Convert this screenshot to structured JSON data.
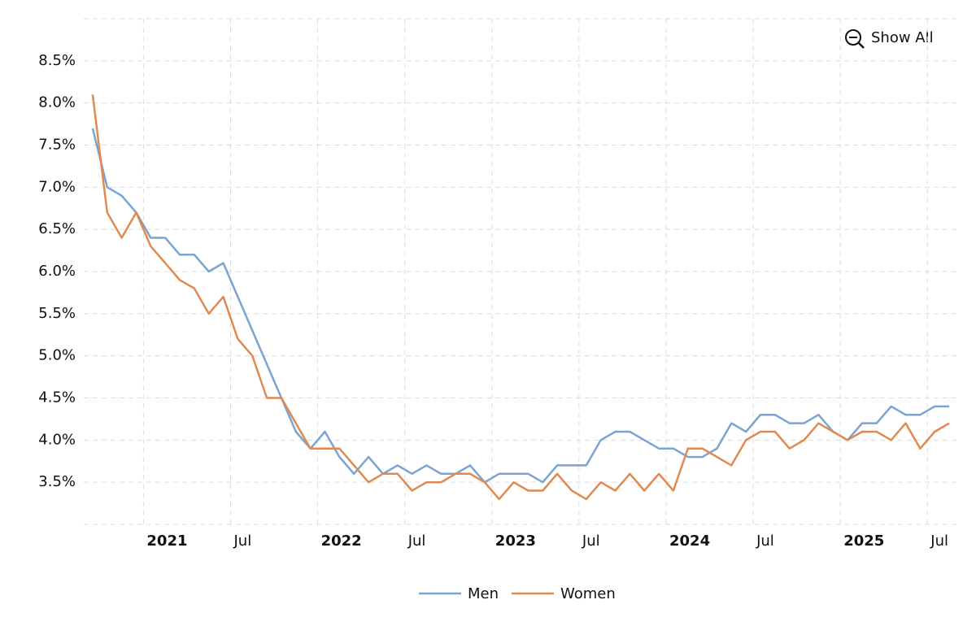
{
  "button": "Show All",
  "chart_data": {
    "type": "line",
    "x": [
      "2020-09",
      "2020-10",
      "2020-11",
      "2020-12",
      "2021-01",
      "2021-02",
      "2021-03",
      "2021-04",
      "2021-05",
      "2021-06",
      "2021-07",
      "2021-08",
      "2021-09",
      "2021-10",
      "2021-11",
      "2021-12",
      "2022-01",
      "2022-02",
      "2022-03",
      "2022-04",
      "2022-05",
      "2022-06",
      "2022-07",
      "2022-08",
      "2022-09",
      "2022-10",
      "2022-11",
      "2022-12",
      "2023-01",
      "2023-02",
      "2023-03",
      "2023-04",
      "2023-05",
      "2023-06",
      "2023-07",
      "2023-08",
      "2023-09",
      "2023-10",
      "2023-11",
      "2023-12",
      "2024-01",
      "2024-02",
      "2024-03",
      "2024-04",
      "2024-05",
      "2024-06",
      "2024-07",
      "2024-08",
      "2024-09",
      "2024-10",
      "2024-11",
      "2024-12",
      "2025-01",
      "2025-02",
      "2025-03",
      "2025-04",
      "2025-05",
      "2025-06",
      "2025-07",
      "2025-08"
    ],
    "series": [
      {
        "name": "Men",
        "color": "#7ba3d3",
        "values": [
          7.7,
          7.0,
          6.9,
          6.7,
          6.4,
          6.4,
          6.2,
          6.2,
          6.0,
          6.1,
          5.7,
          5.3,
          4.9,
          4.5,
          4.1,
          3.9,
          4.1,
          3.8,
          3.6,
          3.8,
          3.6,
          3.7,
          3.6,
          3.7,
          3.6,
          3.6,
          3.7,
          3.5,
          3.6,
          3.6,
          3.6,
          3.5,
          3.7,
          3.7,
          3.7,
          4.0,
          4.1,
          4.1,
          4.0,
          3.9,
          3.9,
          3.8,
          3.8,
          3.9,
          4.2,
          4.1,
          4.3,
          4.3,
          4.2,
          4.2,
          4.3,
          4.1,
          4.0,
          4.2,
          4.2,
          4.4,
          4.3,
          4.3,
          4.4,
          4.4
        ]
      },
      {
        "name": "Women",
        "color": "#e08a4f",
        "values": [
          8.1,
          6.7,
          6.4,
          6.7,
          6.3,
          6.1,
          5.9,
          5.8,
          5.5,
          5.7,
          5.2,
          5.0,
          4.5,
          4.5,
          4.2,
          3.9,
          3.9,
          3.9,
          3.7,
          3.5,
          3.6,
          3.6,
          3.4,
          3.5,
          3.5,
          3.6,
          3.6,
          3.5,
          3.3,
          3.5,
          3.4,
          3.4,
          3.6,
          3.4,
          3.3,
          3.5,
          3.4,
          3.6,
          3.4,
          3.6,
          3.4,
          3.9,
          3.9,
          3.8,
          3.7,
          4.0,
          4.1,
          4.1,
          3.9,
          4.0,
          4.2,
          4.1,
          4.0,
          4.1,
          4.1,
          4.0,
          4.2,
          3.9,
          4.1,
          4.2
        ]
      }
    ],
    "xlim": [
      "2020-09",
      "2025-09"
    ],
    "xticks": [
      {
        "value": "2021-01",
        "label": "2021"
      },
      {
        "value": "2021-07",
        "label": "Jul"
      },
      {
        "value": "2022-01",
        "label": "2022"
      },
      {
        "value": "2022-07",
        "label": "Jul"
      },
      {
        "value": "2023-01",
        "label": "2023"
      },
      {
        "value": "2023-07",
        "label": "Jul"
      },
      {
        "value": "2024-01",
        "label": "2024"
      },
      {
        "value": "2024-07",
        "label": "Jul"
      },
      {
        "value": "2025-01",
        "label": "2025"
      },
      {
        "value": "2025-07",
        "label": "Jul"
      }
    ],
    "ylim": [
      3.0,
      9.0
    ],
    "yticks": [
      {
        "value": 3.5,
        "label": "3.5%"
      },
      {
        "value": 4.0,
        "label": "4.0%"
      },
      {
        "value": 4.5,
        "label": "4.5%"
      },
      {
        "value": 5.0,
        "label": "5.0%"
      },
      {
        "value": 5.5,
        "label": "5.5%"
      },
      {
        "value": 6.0,
        "label": "6.0%"
      },
      {
        "value": 6.5,
        "label": "6.5%"
      },
      {
        "value": 7.0,
        "label": "7.0%"
      },
      {
        "value": 7.5,
        "label": "7.5%"
      },
      {
        "value": 8.0,
        "label": "8.0%"
      },
      {
        "value": 8.5,
        "label": "8.5%"
      }
    ],
    "grid": true,
    "legend": "bottom"
  }
}
